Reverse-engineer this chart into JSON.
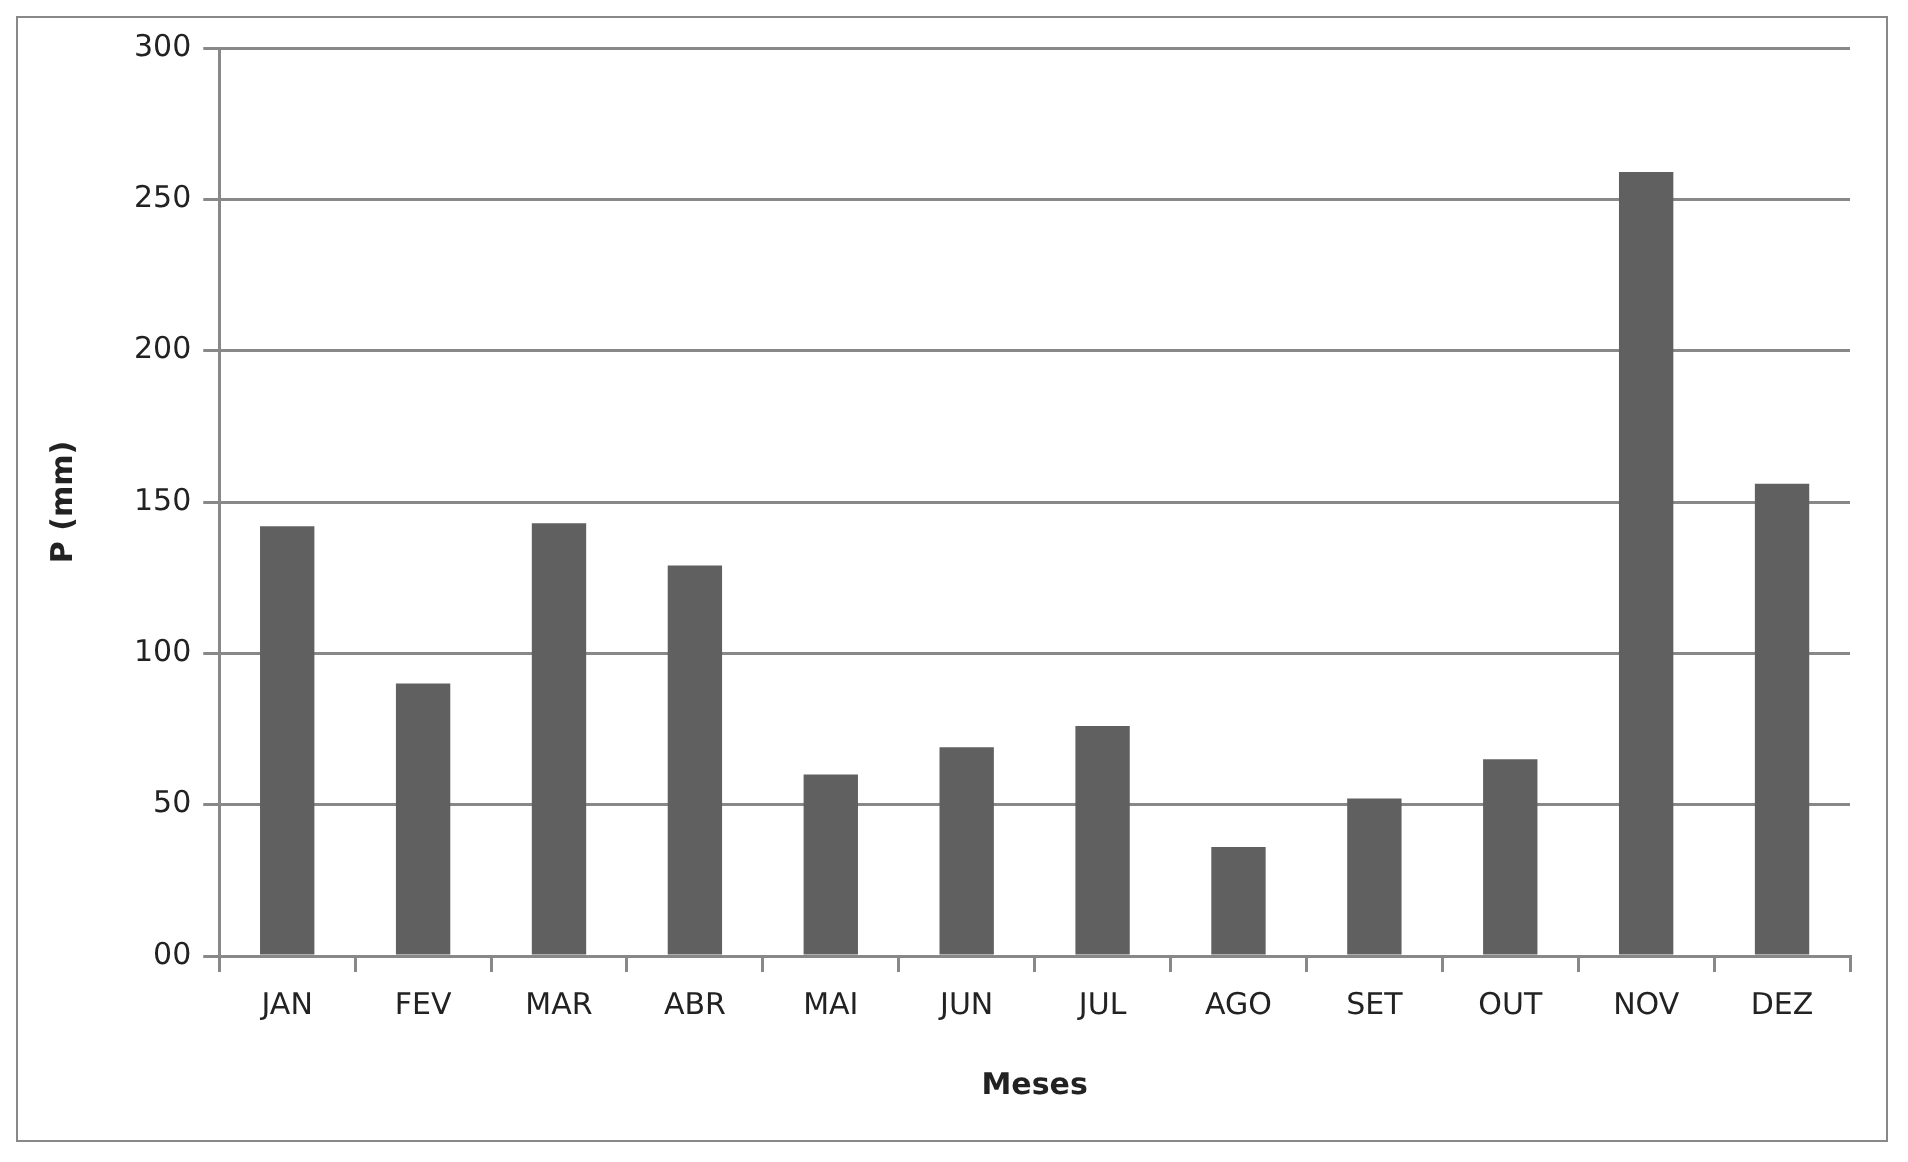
{
  "chart_data": {
    "type": "bar",
    "xlabel": "Meses",
    "ylabel": "P (mm)",
    "categories": [
      "JAN",
      "FEV",
      "MAR",
      "ABR",
      "MAI",
      "JUN",
      "JUL",
      "AGO",
      "SET",
      "OUT",
      "NOV",
      "DEZ"
    ],
    "values": [
      142,
      90,
      143,
      129,
      60,
      69,
      76,
      36,
      52,
      65,
      259,
      156
    ],
    "color": "#606060",
    "ylim": [
      0,
      300
    ],
    "yticks": [
      {
        "value": 0,
        "label": "00"
      },
      50,
      100,
      150,
      200,
      250,
      300
    ],
    "grid": "y",
    "legend": false
  }
}
